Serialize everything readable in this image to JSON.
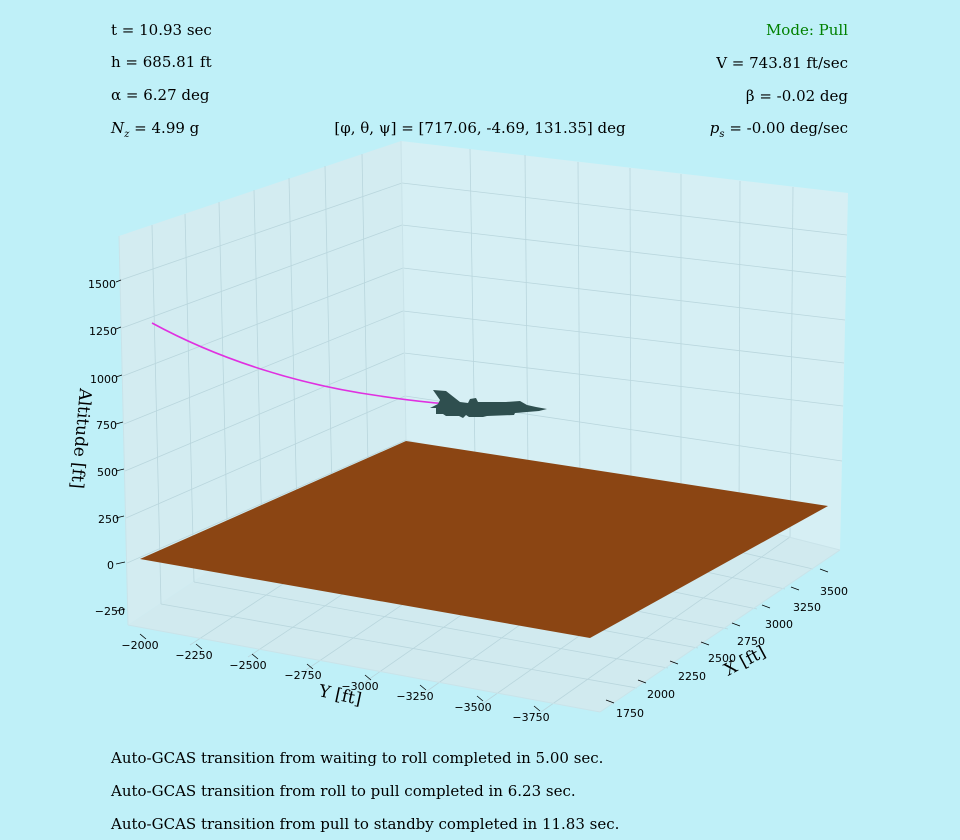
{
  "colors": {
    "background": "#bff0f8",
    "pane": "#d6eff4",
    "ground": "#8b4513",
    "trajectory": "#e030e0",
    "aircraft": "#2f4f4f",
    "mode_text": "#008000"
  },
  "hud": {
    "time": "t = 10.93 sec",
    "altitude": "h = 685.81 ft",
    "alpha": "α = 6.27 deg",
    "nz": "N",
    "nz_sub": "z",
    "nz_rest": " = 4.99 g",
    "euler": "[φ, θ, ψ] = [717.06, -4.69, 131.35] deg",
    "mode": "Mode: Pull",
    "velocity": "V = 743.81 ft/sec",
    "beta": "β = -0.02 deg",
    "ps": "p",
    "ps_sub": "s",
    "ps_rest": " = -0.00 deg/sec"
  },
  "messages": [
    "Auto-GCAS transition from waiting to roll completed in 5.00 sec.",
    "Auto-GCAS transition from roll to pull completed in 6.23 sec.",
    "Auto-GCAS transition from pull to standby completed in 11.83 sec."
  ],
  "chart_data": {
    "type": "line3d",
    "axes": {
      "x": {
        "label": "X [ft]",
        "ticks": [
          "1750",
          "2000",
          "2250",
          "2500",
          "2750",
          "3000",
          "3250",
          "3500"
        ]
      },
      "y": {
        "label": "Y [ft]",
        "ticks": [
          "−2000",
          "−2250",
          "−2500",
          "−2750",
          "−3000",
          "−3250",
          "−3500",
          "−3750"
        ]
      },
      "z": {
        "label": "Altitude [ft]",
        "ticks": [
          "−250",
          "0",
          "250",
          "500",
          "750",
          "1000",
          "1250",
          "1500"
        ]
      }
    },
    "grid": true,
    "series": [
      {
        "kind": "trajectory",
        "note": "flight path ending at aircraft position, altitude ~686 ft"
      }
    ],
    "ground_plane_altitude": 0
  }
}
